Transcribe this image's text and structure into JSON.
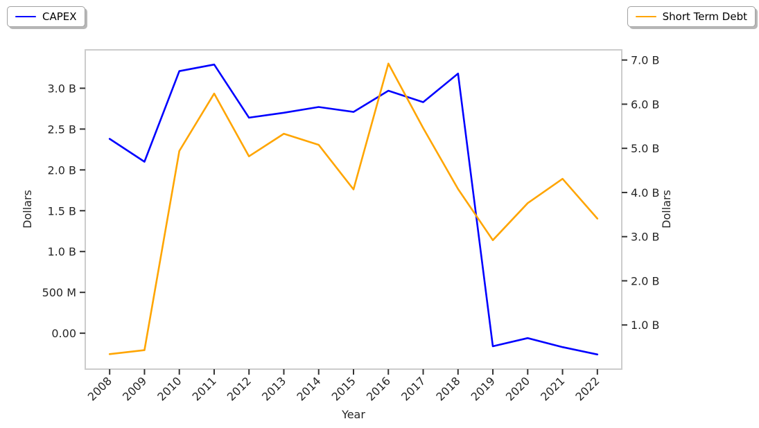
{
  "legend": {
    "items": [
      {
        "label": "CAPEX",
        "color": "#0000ff"
      },
      {
        "label": "Short Term Debt",
        "color": "#ffa500"
      }
    ]
  },
  "chart_data": {
    "type": "line",
    "title": "",
    "xlabel": "Year",
    "ylabel_left": "Dollars",
    "ylabel_right": "Dollars",
    "x": [
      2008,
      2009,
      2010,
      2011,
      2012,
      2013,
      2014,
      2015,
      2016,
      2017,
      2018,
      2019,
      2020,
      2021,
      2022
    ],
    "x_tick_labels": [
      "2008",
      "2009",
      "2010",
      "2011",
      "2012",
      "2013",
      "2014",
      "2015",
      "2016",
      "2017",
      "2018",
      "2019",
      "2020",
      "2021",
      "2022"
    ],
    "series": [
      {
        "name": "CAPEX",
        "axis": "left",
        "color": "#0000ff",
        "units": "billions of dollars",
        "values": [
          2.38,
          2.1,
          3.21,
          3.29,
          2.64,
          2.7,
          2.77,
          2.71,
          2.97,
          2.83,
          3.18,
          -0.16,
          -0.06,
          -0.17,
          -0.26
        ]
      },
      {
        "name": "Short Term Debt",
        "axis": "right",
        "color": "#ffa500",
        "units": "billions of dollars",
        "values": [
          0.34,
          0.43,
          4.94,
          6.24,
          4.82,
          5.33,
          5.08,
          4.07,
          6.92,
          5.46,
          4.08,
          2.92,
          3.76,
          4.31,
          3.41
        ]
      }
    ],
    "left_axis": {
      "range": [
        -0.44,
        3.47
      ],
      "ticks": [
        {
          "value": 0.0,
          "label": "0.00"
        },
        {
          "value": 0.5,
          "label": "500 M"
        },
        {
          "value": 1.0,
          "label": "1.0 B"
        },
        {
          "value": 1.5,
          "label": "1.5 B"
        },
        {
          "value": 2.0,
          "label": "2.0 B"
        },
        {
          "value": 2.5,
          "label": "2.5 B"
        },
        {
          "value": 3.0,
          "label": "3.0 B"
        }
      ]
    },
    "right_axis": {
      "range": [
        0.0,
        7.23
      ],
      "ticks": [
        {
          "value": 1.0,
          "label": "1.0 B"
        },
        {
          "value": 2.0,
          "label": "2.0 B"
        },
        {
          "value": 3.0,
          "label": "3.0 B"
        },
        {
          "value": 4.0,
          "label": "4.0 B"
        },
        {
          "value": 5.0,
          "label": "5.0 B"
        },
        {
          "value": 6.0,
          "label": "6.0 B"
        },
        {
          "value": 7.0,
          "label": "7.0 B"
        }
      ]
    },
    "xlim": [
      2007.3,
      2022.7
    ],
    "grid": false,
    "legend_position": "outside plot: CAPEX top-left, Short Term Debt top-right"
  },
  "styles": {
    "spine_color": "#cccccc",
    "tick_mark_color": "#333333",
    "tick_label_color": "#262626",
    "background": "#ffffff"
  }
}
